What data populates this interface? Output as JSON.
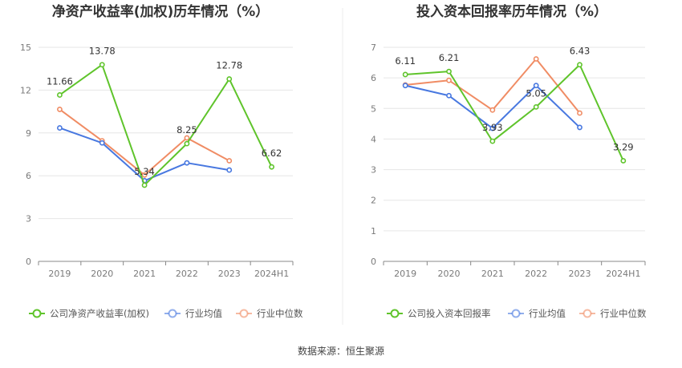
{
  "chart_data": [
    {
      "type": "line",
      "title": "净资产收益率(加权)历年情况（%）",
      "categories": [
        "2019",
        "2020",
        "2021",
        "2022",
        "2023",
        "2024H1"
      ],
      "ylim": [
        0,
        15
      ],
      "yticks": [
        0,
        3,
        6,
        9,
        12,
        15
      ],
      "series": [
        {
          "name": "公司净资产收益率(加权)",
          "color": "#5fc42b",
          "values": [
            11.66,
            13.78,
            5.34,
            8.25,
            12.78,
            6.62
          ],
          "labels": [
            "11.66",
            "13.78",
            "5.34",
            "8.25",
            "12.78",
            "6.62"
          ]
        },
        {
          "name": "行业均值",
          "color": "#4878e0",
          "values": [
            9.35,
            8.3,
            5.65,
            6.9,
            6.4,
            null
          ]
        },
        {
          "name": "行业中位数",
          "color": "#f08c64",
          "values": [
            10.65,
            8.45,
            6.05,
            8.65,
            7.05,
            null
          ]
        }
      ]
    },
    {
      "type": "line",
      "title": "投入资本回报率历年情况（%）",
      "categories": [
        "2019",
        "2020",
        "2021",
        "2022",
        "2023",
        "2024H1"
      ],
      "ylim": [
        0,
        7
      ],
      "yticks": [
        0,
        1,
        2,
        3,
        4,
        5,
        6,
        7
      ],
      "series": [
        {
          "name": "公司投入资本回报率",
          "color": "#5fc42b",
          "values": [
            6.11,
            6.21,
            3.93,
            5.05,
            6.43,
            3.29
          ],
          "labels": [
            "6.11",
            "6.21",
            "3.93",
            "5.05",
            "6.43",
            "3.29"
          ]
        },
        {
          "name": "行业均值",
          "color": "#4878e0",
          "values": [
            5.75,
            5.42,
            4.35,
            5.75,
            4.38,
            null
          ]
        },
        {
          "name": "行业中位数",
          "color": "#f08c64",
          "values": [
            5.77,
            5.92,
            4.95,
            6.62,
            4.85,
            null
          ]
        }
      ]
    }
  ],
  "source": "数据来源：恒生聚源"
}
